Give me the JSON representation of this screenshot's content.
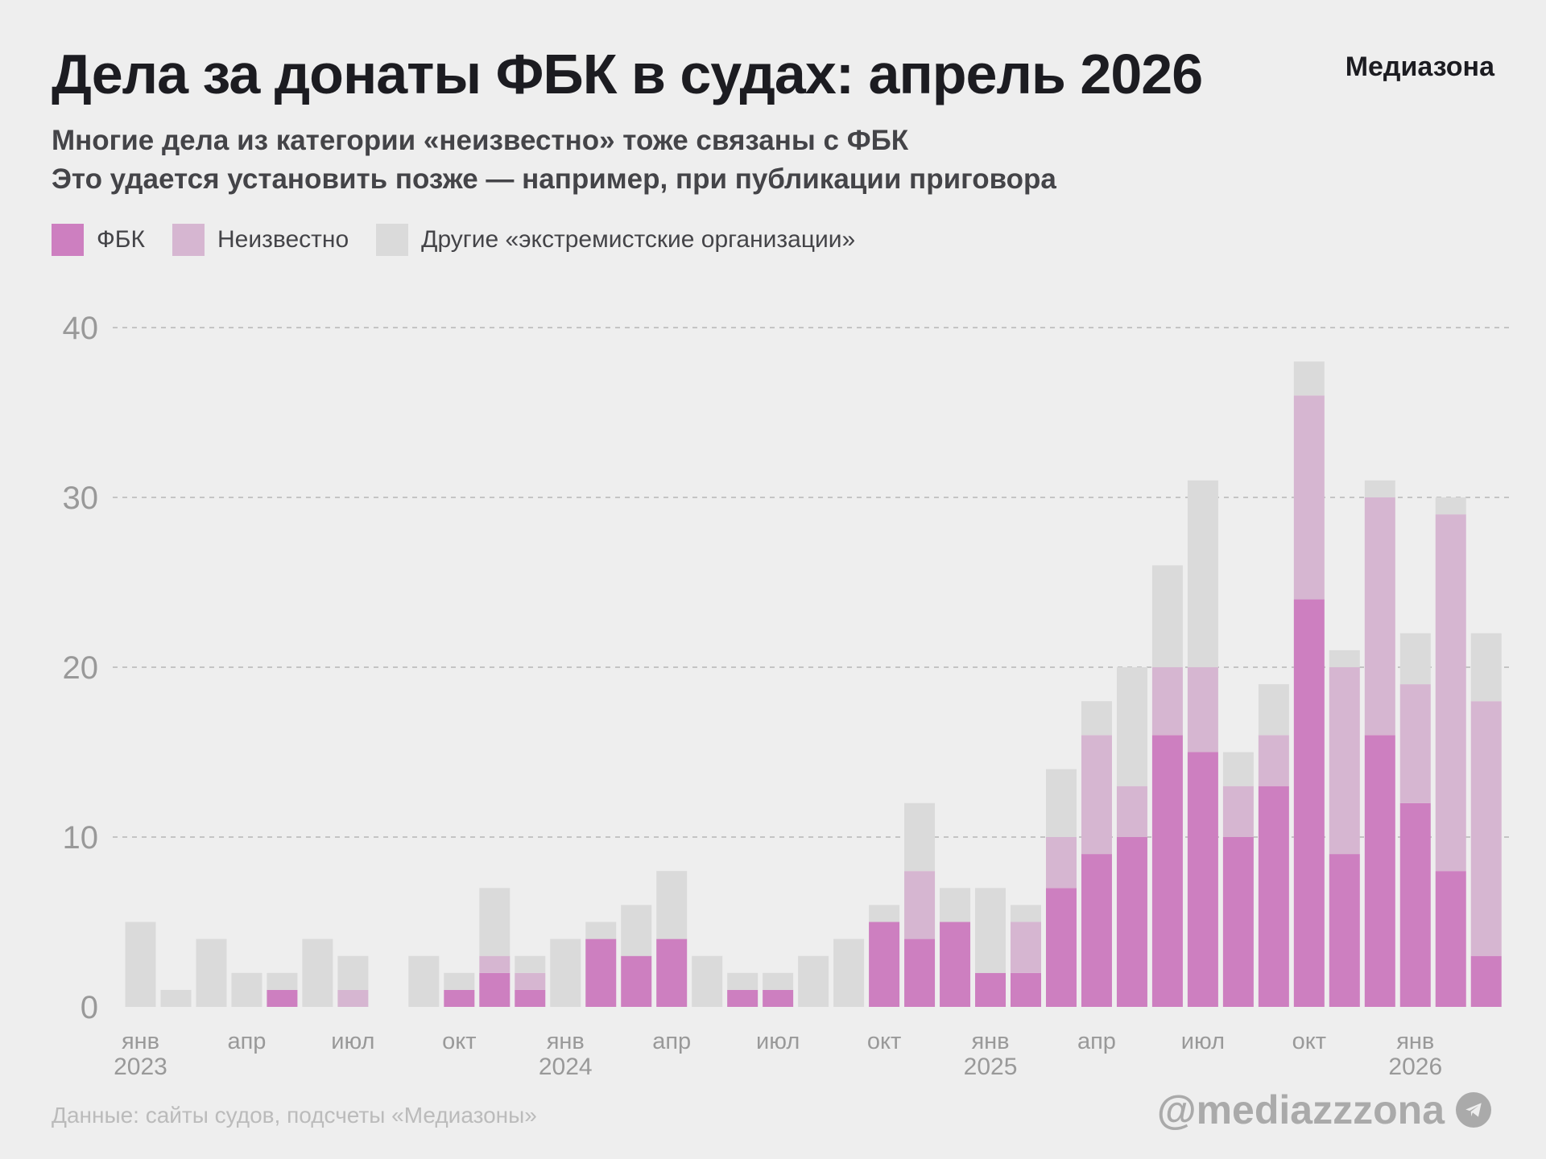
{
  "header": {
    "title": "Дела за донаты ФБК в судах: апрель 2026",
    "logo": "Медиазона",
    "subtitle_1": "Многие дела из категории «неизвестно» тоже связаны с ФБК",
    "subtitle_2": "Это удается установить позже — например, при публикации приговора"
  },
  "legend": [
    {
      "label": "ФБК",
      "color": "#cd7fc0"
    },
    {
      "label": "Неизвестно",
      "color": "#d6b6d1"
    },
    {
      "label": "Другие «экстремистские организации»",
      "color": "#dadada"
    }
  ],
  "footer": {
    "source": "Данные: сайты судов, подсчеты «Медиазоны»",
    "handle": "@mediazzzona",
    "handle_icon": "telegram-icon"
  },
  "chart_data": {
    "type": "bar",
    "stacked": true,
    "title": "Дела за донаты ФБК в судах: апрель 2026",
    "xlabel": "",
    "ylabel": "",
    "ylim": [
      0,
      40
    ],
    "yticks": [
      0,
      10,
      20,
      30,
      40
    ],
    "grid": true,
    "legend_position": "top-left",
    "categories": [
      "2023-01",
      "2023-02",
      "2023-03",
      "2023-04",
      "2023-05",
      "2023-06",
      "2023-07",
      "2023-08",
      "2023-09",
      "2023-10",
      "2023-11",
      "2023-12",
      "2024-01",
      "2024-02",
      "2024-03",
      "2024-04",
      "2024-05",
      "2024-06",
      "2024-07",
      "2024-08",
      "2024-09",
      "2024-10",
      "2024-11",
      "2024-12",
      "2025-01",
      "2025-02",
      "2025-03",
      "2025-04",
      "2025-05",
      "2025-06",
      "2025-07",
      "2025-08",
      "2025-09",
      "2025-10",
      "2025-11",
      "2025-12",
      "2026-01",
      "2026-02",
      "2026-03"
    ],
    "xtick_labels": [
      {
        "index": 0,
        "month": "янв",
        "year": "2023"
      },
      {
        "index": 3,
        "month": "апр",
        "year": ""
      },
      {
        "index": 6,
        "month": "июл",
        "year": ""
      },
      {
        "index": 9,
        "month": "окт",
        "year": ""
      },
      {
        "index": 12,
        "month": "янв",
        "year": "2024"
      },
      {
        "index": 15,
        "month": "апр",
        "year": ""
      },
      {
        "index": 18,
        "month": "июл",
        "year": ""
      },
      {
        "index": 21,
        "month": "окт",
        "year": ""
      },
      {
        "index": 24,
        "month": "янв",
        "year": "2025"
      },
      {
        "index": 27,
        "month": "апр",
        "year": ""
      },
      {
        "index": 30,
        "month": "июл",
        "year": ""
      },
      {
        "index": 33,
        "month": "окт",
        "year": ""
      },
      {
        "index": 36,
        "month": "янв",
        "year": "2026"
      }
    ],
    "series": [
      {
        "name": "ФБК",
        "color": "#cd7fc0",
        "values": [
          0,
          0,
          0,
          0,
          1,
          0,
          0,
          0,
          0,
          1,
          2,
          1,
          0,
          4,
          3,
          4,
          0,
          1,
          1,
          0,
          0,
          5,
          4,
          5,
          2,
          2,
          7,
          9,
          10,
          16,
          15,
          10,
          13,
          24,
          9,
          16,
          12,
          8,
          3
        ]
      },
      {
        "name": "Неизвестно",
        "color": "#d6b6d1",
        "values": [
          0,
          0,
          0,
          0,
          0,
          0,
          1,
          0,
          0,
          0,
          1,
          1,
          0,
          0,
          0,
          0,
          0,
          0,
          0,
          0,
          0,
          0,
          4,
          0,
          0,
          3,
          3,
          7,
          3,
          4,
          5,
          3,
          3,
          12,
          11,
          14,
          7,
          21,
          15
        ]
      },
      {
        "name": "Другие «экстремистские организации»",
        "color": "#dadada",
        "values": [
          5,
          1,
          4,
          2,
          1,
          4,
          2,
          0,
          3,
          1,
          4,
          1,
          4,
          1,
          3,
          4,
          3,
          1,
          1,
          3,
          4,
          1,
          4,
          2,
          5,
          1,
          4,
          2,
          7,
          6,
          11,
          2,
          3,
          2,
          1,
          1,
          3,
          1,
          4
        ]
      }
    ]
  }
}
